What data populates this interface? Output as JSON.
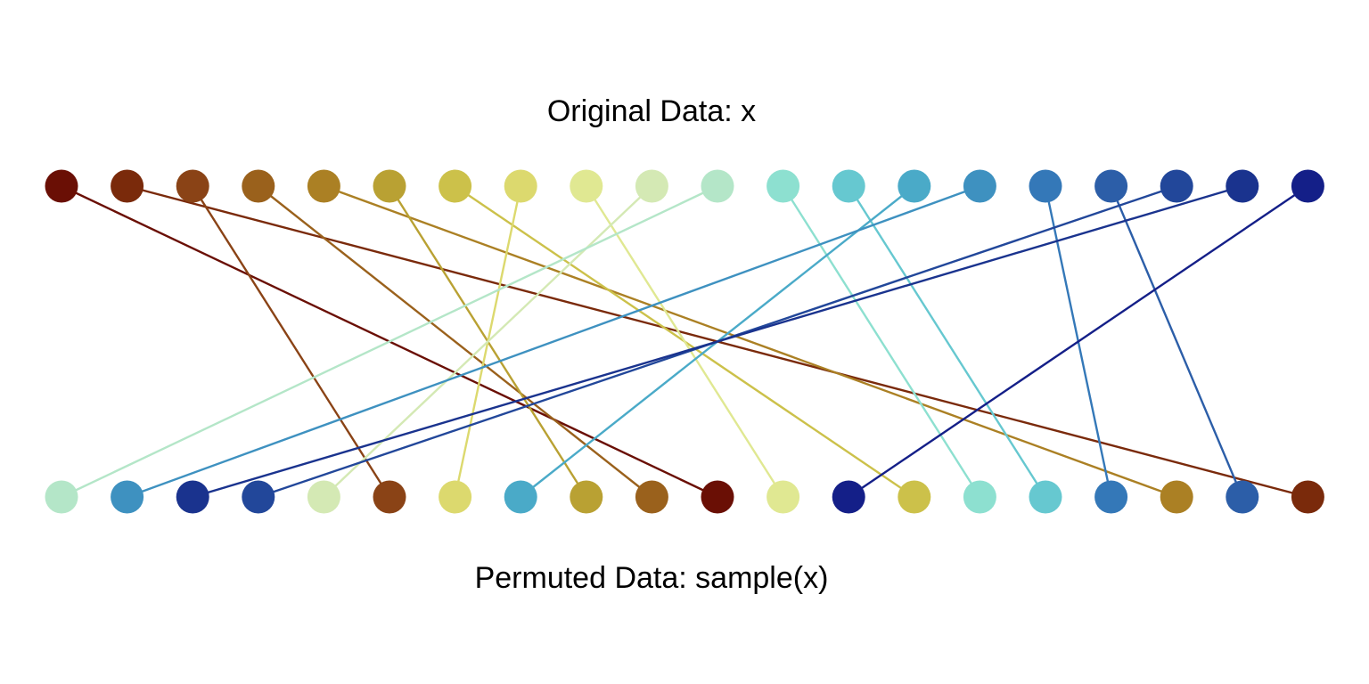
{
  "titles": {
    "top": "Original Data: x",
    "bottom": "Permuted Data: sample(x)"
  },
  "colors": [
    "#6a0f05",
    "#7a2a0b",
    "#8a4316",
    "#9a611c",
    "#ab8024",
    "#b9a133",
    "#ccc14a",
    "#dcd96e",
    "#e0e892",
    "#d4e9b4",
    "#b4e6c8",
    "#8de0d0",
    "#66c8d0",
    "#4aaac8",
    "#3e91c0",
    "#3478b8",
    "#2c5ea8",
    "#22479a",
    "#1a338e",
    "#141f88"
  ],
  "permutation": [
    10,
    14,
    18,
    17,
    9,
    2,
    7,
    13,
    5,
    3,
    0,
    8,
    19,
    6,
    11,
    12,
    15,
    4,
    16,
    1
  ]
}
